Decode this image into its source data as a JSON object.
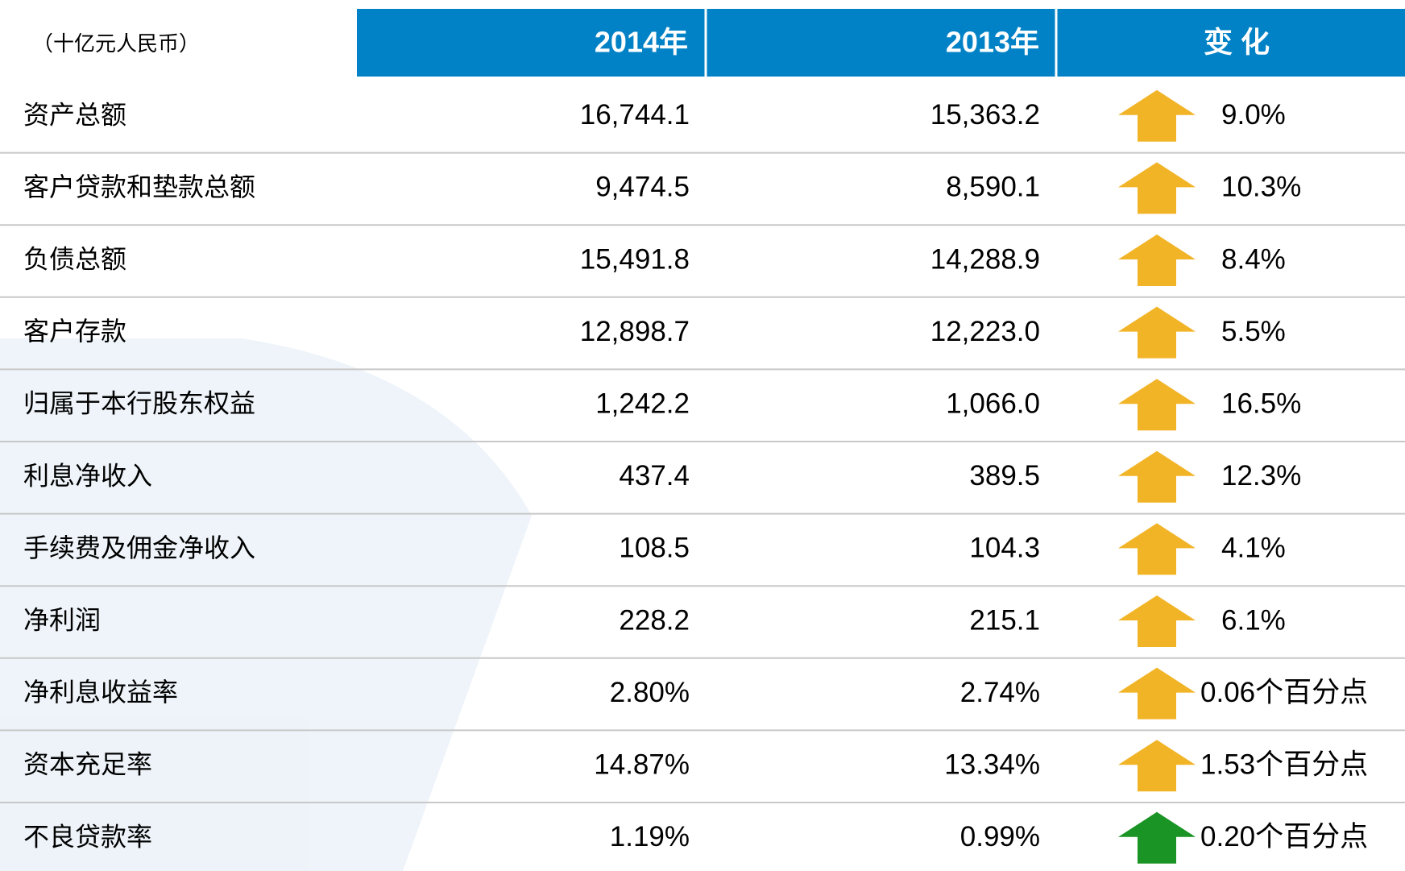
{
  "header": {
    "unit": "（十亿元人民币）",
    "columns": [
      "2014年",
      "2013年",
      "变 化"
    ]
  },
  "table": {
    "rows": [
      [
        "资产总额",
        "16,744.1",
        "15,363.2",
        "9.0%"
      ],
      [
        "客户贷款和垫款总额",
        "9,474.5",
        "8,590.1",
        "10.3%"
      ],
      [
        "负债总额",
        "15,491.8",
        "14,288.9",
        "8.4%"
      ],
      [
        "客户存款",
        "12,898.7",
        "12,223.0",
        "5.5%"
      ],
      [
        "归属于本行股东权益",
        "1,242.2",
        "1,066.0",
        "16.5%"
      ],
      [
        "利息净收入",
        "437.4",
        "389.5",
        "12.3%"
      ],
      [
        "手续费及佣金净收入",
        "108.5",
        "104.3",
        "4.1%"
      ],
      [
        "净利润",
        "228.2",
        "215.1",
        "6.1%"
      ],
      [
        "净利息收益率",
        "2.80%",
        "2.74%",
        "0.06个百分点"
      ],
      [
        "资本充足率",
        "14.87%",
        "13.34%",
        "1.53个百分点"
      ],
      [
        "不良贷款率",
        "1.19%",
        "0.99%",
        "0.20个百分点"
      ]
    ],
    "arrow_colors": [
      "#f2b427",
      "#f2b427",
      "#f2b427",
      "#f2b427",
      "#f2b427",
      "#f2b427",
      "#f2b427",
      "#f2b427",
      "#f2b427",
      "#f2b427",
      "#1a9424"
    ]
  }
}
